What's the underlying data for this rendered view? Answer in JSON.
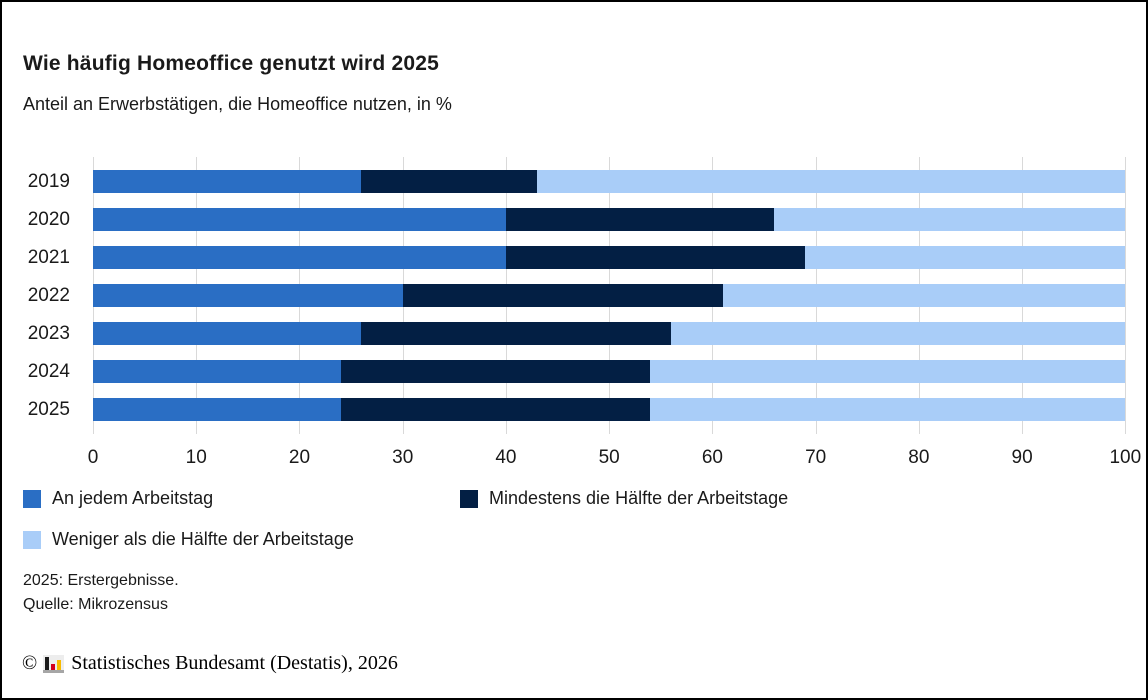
{
  "header": {
    "title": "Wie häufig Homeoffice genutzt wird 2025",
    "subtitle": "Anteil an Erwerbstätigen, die Homeoffice nutzen, in %"
  },
  "chart_data": {
    "type": "bar",
    "orientation": "horizontal",
    "stacked": true,
    "title": "Wie häufig Homeoffice genutzt wird 2025",
    "subtitle": "Anteil an Erwerbstätigen, die Homeoffice nutzen, in %",
    "categories": [
      "2019",
      "2020",
      "2021",
      "2022",
      "2023",
      "2024",
      "2025"
    ],
    "series": [
      {
        "name": "An jedem Arbeitstag",
        "color": "#2a6ec4",
        "values": [
          26,
          40,
          40,
          30,
          26,
          24,
          24
        ]
      },
      {
        "name": "Mindestens die Hälfte der Arbeitstage",
        "color": "#031f44",
        "values": [
          17,
          26,
          29,
          31,
          30,
          30,
          30
        ]
      },
      {
        "name": "Weniger als die Hälfte der Arbeitstage",
        "color": "#a9cdf8",
        "values": [
          57,
          34,
          31,
          39,
          44,
          46,
          46
        ]
      }
    ],
    "x_ticks": [
      0,
      10,
      20,
      30,
      40,
      50,
      60,
      70,
      80,
      90,
      100
    ],
    "xlim": [
      0,
      100.45
    ],
    "unit": "%",
    "grid": "vertical",
    "gridline_color": "#d9d9d9",
    "legend_position": "bottom"
  },
  "footnotes": {
    "line1": "2025: Erstergebnisse.",
    "line2": "Quelle: Mikrozensus"
  },
  "footer": {
    "copyright_symbol": "©",
    "text": "Statistisches Bundesamt (Destatis), 2026",
    "logo_colors": {
      "bar_black": "#1a1a1a",
      "bar_red": "#d3001d",
      "bar_gold": "#f8bb00"
    }
  }
}
